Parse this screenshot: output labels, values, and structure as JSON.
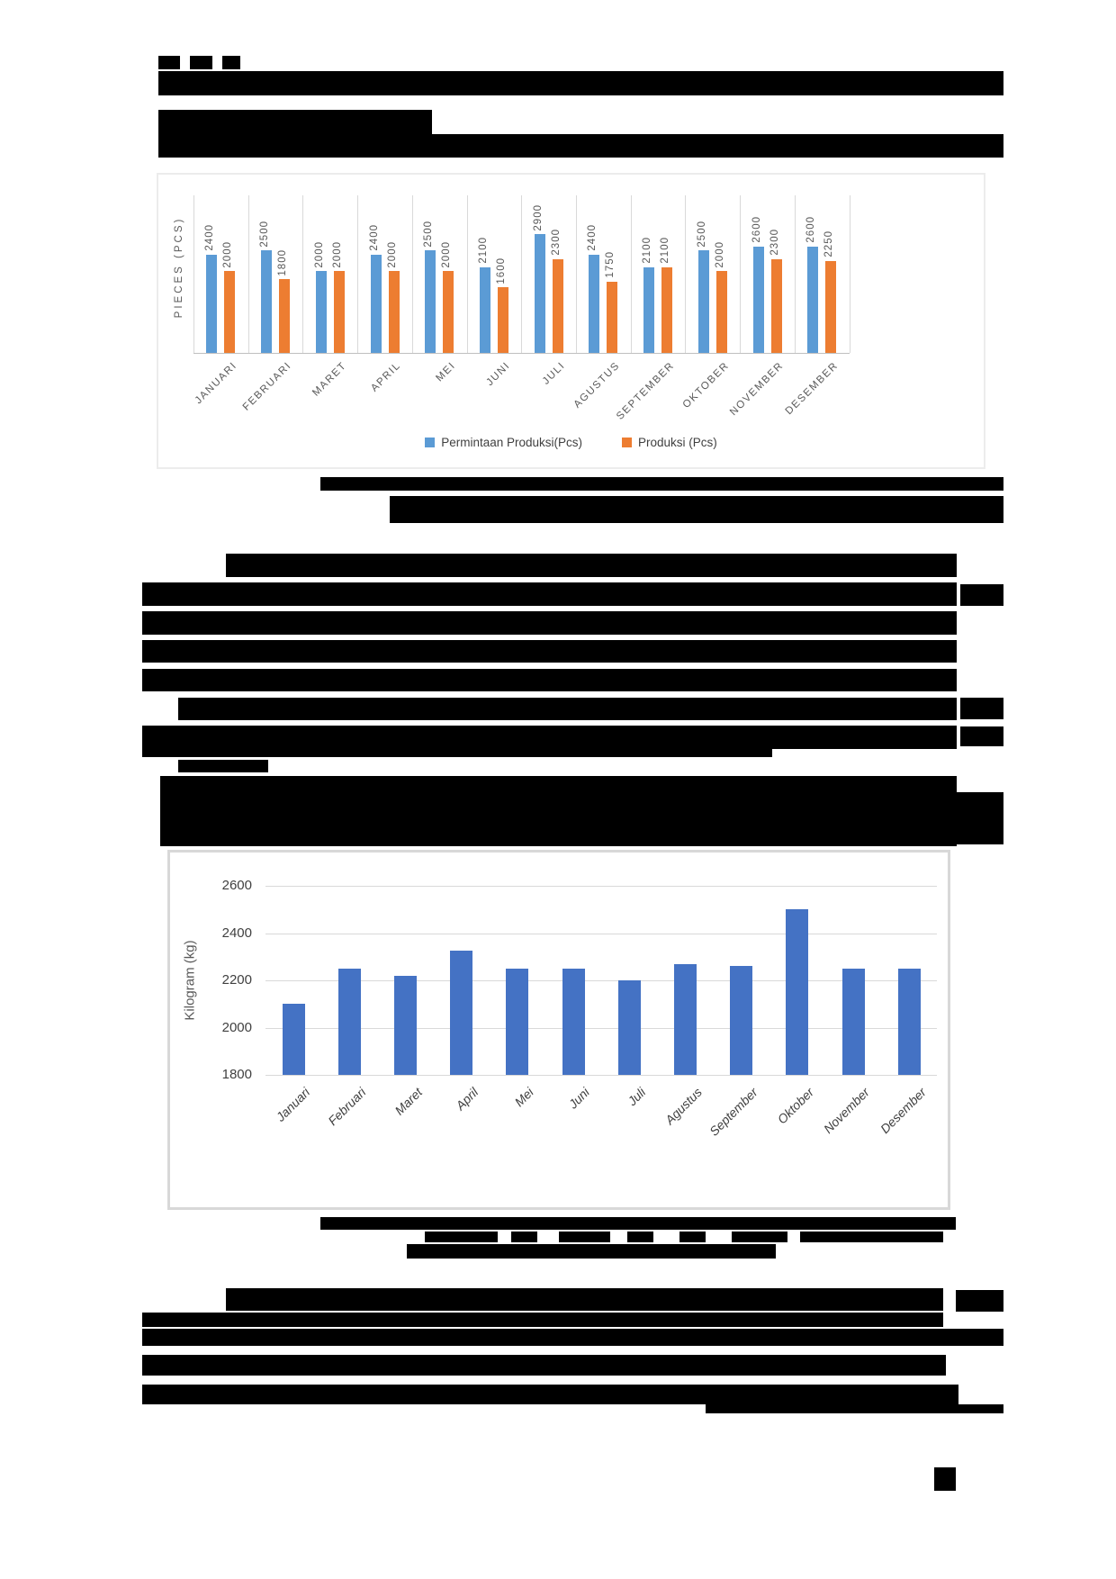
{
  "chart_data": [
    {
      "type": "bar",
      "ylabel": "PIECES (PCS)",
      "categories": [
        "JANUARI",
        "FEBRUARI",
        "MARET",
        "APRIL",
        "MEI",
        "JUNI",
        "JULI",
        "AGUSTUS",
        "SEPTEMBER",
        "OKTOBER",
        "NOVEMBER",
        "DESEMBER"
      ],
      "series": [
        {
          "name": "Permintaan Produksi(Pcs)",
          "color": "#5B9BD5",
          "values": [
            2400,
            2500,
            2000,
            2400,
            2500,
            2100,
            2900,
            2400,
            2100,
            2500,
            2600,
            2600
          ]
        },
        {
          "name": "Produksi (Pcs)",
          "color": "#ED7D31",
          "values": [
            2000,
            1800,
            2000,
            2000,
            2000,
            1600,
            2300,
            1750,
            2100,
            2000,
            2300,
            2250
          ]
        }
      ],
      "data_labels": true,
      "legend_position": "bottom",
      "ylim": [
        0,
        2900
      ],
      "grid": "vertical-category-separators"
    },
    {
      "type": "bar",
      "ylabel": "Kilogram (kg)",
      "categories": [
        "Januari",
        "Februari",
        "Maret",
        "April",
        "Mei",
        "Juni",
        "Juli",
        "Agustus",
        "September",
        "Oktober",
        "November",
        "Desember"
      ],
      "values": [
        2100,
        2250,
        2220,
        2325,
        2250,
        2250,
        2200,
        2270,
        2260,
        2500,
        2250,
        2250
      ],
      "bar_color": "#4472C4",
      "yticks": [
        2600,
        2400,
        2200,
        2000,
        1800
      ],
      "ylim": [
        1800,
        2600
      ],
      "grid": "horizontal"
    }
  ],
  "styles": {
    "gridline_color": "#d9d9d9",
    "axis_line_color": "#bfbfbf",
    "label_color": "#595959",
    "tick_color": "#404040"
  },
  "redactions": {
    "note": "black redaction bars covering all page text",
    "bars": [
      [
        176,
        62,
        24,
        15
      ],
      [
        211,
        62,
        25,
        15
      ],
      [
        247,
        62,
        20,
        15
      ],
      [
        176,
        79,
        939,
        27
      ],
      [
        176,
        122,
        304,
        27
      ],
      [
        176,
        149,
        939,
        26
      ],
      [
        356,
        530,
        759,
        15
      ],
      [
        433,
        551,
        682,
        30
      ],
      [
        251,
        615,
        812,
        26
      ],
      [
        158,
        647,
        905,
        26
      ],
      [
        1067,
        649,
        48,
        24
      ],
      [
        158,
        679,
        905,
        26
      ],
      [
        158,
        711,
        905,
        25
      ],
      [
        158,
        743,
        905,
        25
      ],
      [
        198,
        775,
        865,
        25
      ],
      [
        1067,
        775,
        48,
        24
      ],
      [
        158,
        806,
        905,
        26
      ],
      [
        1067,
        807,
        48,
        22
      ],
      [
        158,
        832,
        700,
        9
      ],
      [
        198,
        844,
        100,
        14
      ],
      [
        178,
        862,
        885,
        78
      ],
      [
        1063,
        880,
        52,
        58
      ],
      [
        356,
        1352,
        706,
        14
      ],
      [
        472,
        1368,
        81,
        12
      ],
      [
        568,
        1368,
        29,
        12
      ],
      [
        621,
        1368,
        57,
        12
      ],
      [
        697,
        1368,
        29,
        12
      ],
      [
        755,
        1368,
        29,
        12
      ],
      [
        813,
        1368,
        62,
        12
      ],
      [
        889,
        1368,
        159,
        12
      ],
      [
        452,
        1382,
        410,
        16
      ],
      [
        251,
        1431,
        797,
        25
      ],
      [
        1062,
        1433,
        53,
        24
      ],
      [
        158,
        1458,
        890,
        16
      ],
      [
        158,
        1476,
        957,
        19
      ],
      [
        158,
        1505,
        893,
        23
      ],
      [
        158,
        1538,
        907,
        22
      ],
      [
        784,
        1560,
        331,
        10
      ],
      [
        1038,
        1630,
        24,
        26
      ]
    ]
  }
}
